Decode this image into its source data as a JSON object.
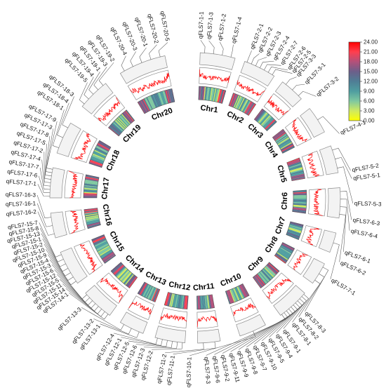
{
  "chromosomes": [
    {
      "name": "Chr1",
      "qtls": [
        "qFLS7-1-1",
        "qFLS7-1-3",
        "qFLS7-1-2",
        "qFLS7-1-4"
      ]
    },
    {
      "name": "Chr2",
      "qtls": [
        "qFLS7-2-1",
        "qFLS7-2-2",
        "qFLS7-2-3",
        "qFLS7-2-4",
        "qFLS7-2-7",
        "qFLS7-2-6",
        "qFLS7-2-5"
      ]
    },
    {
      "name": "Chr3",
      "qtls": [
        "qFLS7-3-3",
        "qFLS7-3-1",
        "qFLS7-3-2"
      ]
    },
    {
      "name": "Chr4",
      "qtls": [
        "qFLS7-4-1"
      ]
    },
    {
      "name": "Chr5",
      "qtls": [
        "qFLS7-5-2",
        "qFLS7-5-1",
        "qFLS7-5-3"
      ]
    },
    {
      "name": "Chr6",
      "qtls": [
        "qFLS7-6-3",
        "qFLS7-6-4",
        "qFLS7-6-1",
        "qFLS7-6-2"
      ]
    },
    {
      "name": "Chr7",
      "qtls": [
        "qFLS7-7-1"
      ]
    },
    {
      "name": "Chr8",
      "qtls": [
        "qFLS7-8-3",
        "qFLS7-8-2",
        "qFLS7-8-1"
      ]
    },
    {
      "name": "Chr9",
      "qtls": [
        "qFLS7-9-1",
        "qFLS7-9-4",
        "qFLS7-9-5",
        "qFLS7-9-10",
        "qFLS7-9-7",
        "qFLS7-9-8",
        "qFLS7-9-9",
        "qFLS7-9-11",
        "qFLS7-9-2",
        "qFLS7-9-6",
        "qFLS7-9-3"
      ]
    },
    {
      "name": "Chr10",
      "qtls": [
        "qFLS7-10-1"
      ]
    },
    {
      "name": "Chr11",
      "qtls": [
        "qFLS7-11-1",
        "qFLS7-11-2"
      ]
    },
    {
      "name": "Chr12",
      "qtls": [
        "qFLS7-12-2",
        "qFLS7-12-3",
        "qFLS7-12-6",
        "qFLS7-12-5",
        "qFLS7-12-1",
        "qFLS7-12-4"
      ]
    },
    {
      "name": "Chr13",
      "qtls": [
        "qFLS7-13-1",
        "qFLS7-13-2",
        "qFLS7-13-3"
      ]
    },
    {
      "name": "Chr14",
      "qtls": [
        "qFLS7-14-1",
        "qFLS7-15-14",
        "qFLS7-15-11",
        "qFLS7-15-5",
        "qFLS7-15-12",
        "qFLS7-15-6",
        "qFLS7-15-3",
        "qFLS7-15-4"
      ]
    },
    {
      "name": "Chr15",
      "qtls": [
        "qFLS7-15-9",
        "qFLS7-15-10",
        "qFLS7-15-2",
        "qFLS7-15-1",
        "qFLS7-15-13",
        "qFLS7-15-8",
        "qFLS7-15-7"
      ]
    },
    {
      "name": "Chr16",
      "qtls": [
        "qFLS7-16-2",
        "qFLS7-16-1",
        "qFLS7-16-3"
      ]
    },
    {
      "name": "Chr17",
      "qtls": [
        "qFLS7-17-1",
        "qFLS7-17-6",
        "qFLS7-17-7",
        "qFLS7-17-4",
        "qFLS7-17-2",
        "qFLS7-17-5",
        "qFLS7-17-8",
        "qFLS7-17-3",
        "qFLS7-17-9"
      ]
    },
    {
      "name": "Chr18",
      "qtls": [
        "qFLS7-18-1",
        "qFLS7-18-4",
        "qFLS7-18-3"
      ]
    },
    {
      "name": "Chr19",
      "qtls": [
        "qFLS7-19-5",
        "qFLS7-19-4",
        "qFLS7-19-1",
        "qFLS7-19-3",
        "qFLS7-19-2"
      ]
    },
    {
      "name": "Chr20",
      "qtls": [
        "qFLS7-20-4",
        "qFLS7-20-3",
        "qFLS7-20-1",
        "qFLS7-20-2",
        "qFLS7-20-5"
      ]
    }
  ],
  "color_scale": {
    "labels": [
      "24.00",
      "21.00",
      "18.00",
      "15.00",
      "12.00",
      "9.00",
      "6.00",
      "3.00",
      "0.00"
    ],
    "stops": [
      "#ff0000",
      "#ff3f4f",
      "#b3507a",
      "#6c5f8a",
      "#4f7e95",
      "#4f9ea0",
      "#7fc8a0",
      "#d0ea60",
      "#ffff00"
    ]
  },
  "colors": {
    "ring_fill": "#f3f3f3",
    "ring_stroke": "#8c8c8c",
    "density_line": "#ff0000",
    "leader_line": "#555555"
  }
}
